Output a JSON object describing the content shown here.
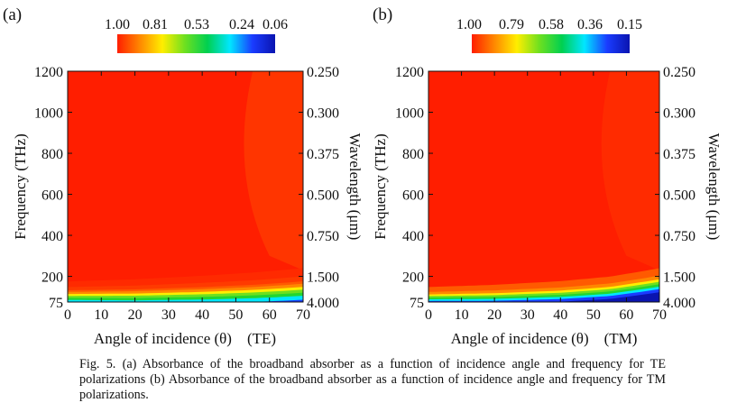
{
  "colors": {
    "red": "#ff1e00",
    "orange": "#ff8800",
    "yellow": "#ffee00",
    "green": "#22d630",
    "cyan": "#00e6ff",
    "blue": "#1a3cff",
    "navy": "#0a14b0"
  },
  "colorbar_stops": [
    "#ff1e00",
    "#ff8800",
    "#ffee00",
    "#6de020",
    "#00d050",
    "#00e6ff",
    "#1a3cff",
    "#0a14b0"
  ],
  "chart_data": [
    {
      "type": "heatmap",
      "panel_label": "(a)",
      "polarization": "TE",
      "xlabel": "Angle of incidence (θ)    (TE)",
      "ylabel_left": "Frequency (THz)",
      "ylabel_right": "Wavelength (μm)",
      "x_ticks": [
        "0",
        "10",
        "20",
        "30",
        "40",
        "50",
        "60",
        "70"
      ],
      "xlim": [
        0,
        70
      ],
      "y_ticks_left": [
        "75",
        "200",
        "400",
        "600",
        "800",
        "1000",
        "1200"
      ],
      "y_tick_values_left": [
        75,
        200,
        400,
        600,
        800,
        1000,
        1200
      ],
      "ylim": [
        75,
        1200
      ],
      "y_ticks_right": [
        "4.000",
        "1.500",
        "0.750",
        "0.500",
        "0.375",
        "0.300",
        "0.250"
      ],
      "colorbar_ticks": [
        "1.00",
        "0.81",
        "0.53",
        "0.24",
        "0.06"
      ],
      "colorbar_range": [
        1.0,
        0.06
      ],
      "edge_profile": [
        {
          "angle": 0,
          "freq": 120
        },
        {
          "angle": 20,
          "freq": 123
        },
        {
          "angle": 40,
          "freq": 132
        },
        {
          "angle": 55,
          "freq": 142
        },
        {
          "angle": 65,
          "freq": 152
        },
        {
          "angle": 70,
          "freq": 158
        }
      ],
      "band_offsets_thz": [
        -65,
        -48,
        -35,
        -25,
        -15,
        -6,
        4,
        12,
        28,
        55
      ]
    },
    {
      "type": "heatmap",
      "panel_label": "(b)",
      "polarization": "TM",
      "xlabel": "Angle of incidence (θ)    (TM)",
      "ylabel_left": "Frequency (THz)",
      "ylabel_right": "Wavelength (μm)",
      "x_ticks": [
        "0",
        "10",
        "20",
        "30",
        "40",
        "50",
        "60",
        "70"
      ],
      "xlim": [
        0,
        70
      ],
      "y_ticks_left": [
        "75",
        "200",
        "400",
        "600",
        "800",
        "1000",
        "1200"
      ],
      "y_tick_values_left": [
        75,
        200,
        400,
        600,
        800,
        1000,
        1200
      ],
      "ylim": [
        75,
        1200
      ],
      "y_ticks_right": [
        "4.000",
        "1.500",
        "0.750",
        "0.500",
        "0.375",
        "0.300",
        "0.250"
      ],
      "colorbar_ticks": [
        "1.00",
        "0.79",
        "0.58",
        "0.36",
        "0.15"
      ],
      "colorbar_range": [
        1.0,
        0.15
      ],
      "edge_profile": [
        {
          "angle": 0,
          "freq": 100
        },
        {
          "angle": 20,
          "freq": 104
        },
        {
          "angle": 40,
          "freq": 115
        },
        {
          "angle": 55,
          "freq": 132
        },
        {
          "angle": 65,
          "freq": 155
        },
        {
          "angle": 70,
          "freq": 168
        }
      ],
      "band_offsets_thz": [
        -30,
        -20,
        -12,
        -4,
        4,
        12,
        24,
        48
      ]
    }
  ],
  "caption": "Fig. 5. (a) Absorbance of the broadband absorber as a function of incidence angle and frequency for TE polarizations (b) Absorbance of the broadband absorber as a function of incidence angle and frequency for TM polarizations."
}
